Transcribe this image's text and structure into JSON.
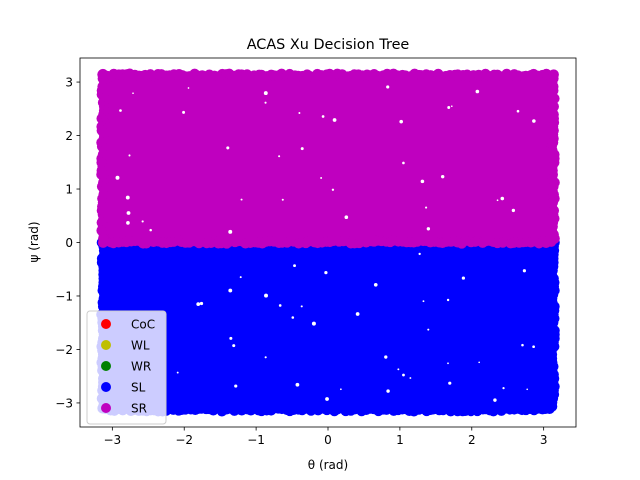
{
  "chart_data": {
    "type": "scatter",
    "title": "ACAS Xu Decision Tree",
    "xlabel": "θ (rad)",
    "ylabel": "ψ (rad)",
    "xlim": [
      -3.45,
      3.45
    ],
    "ylim": [
      -3.45,
      3.45
    ],
    "xticks": [
      -3,
      -2,
      -1,
      0,
      1,
      2,
      3
    ],
    "yticks": [
      -3,
      -2,
      -1,
      0,
      1,
      2,
      3
    ],
    "xtick_labels": [
      "−3",
      "−2",
      "−1",
      "0",
      "1",
      "2",
      "3"
    ],
    "ytick_labels": [
      "−3",
      "−2",
      "−1",
      "0",
      "1",
      "2",
      "3"
    ],
    "grid": false,
    "legend_position": "lower-left",
    "series": [
      {
        "name": "CoC",
        "color": "#ff0000",
        "regions": []
      },
      {
        "name": "WL",
        "color": "#bfbf00",
        "regions": []
      },
      {
        "name": "WR",
        "color": "#008000",
        "regions": []
      },
      {
        "name": "SL",
        "color": "#0000ff",
        "regions": [
          {
            "x": [
              -3.14,
              3.14
            ],
            "y": [
              -3.14,
              0.0
            ]
          }
        ]
      },
      {
        "name": "SR",
        "color": "#bf00bf",
        "regions": [
          {
            "x": [
              -3.14,
              3.14
            ],
            "y": [
              0.0,
              3.14
            ]
          }
        ]
      }
    ]
  }
}
